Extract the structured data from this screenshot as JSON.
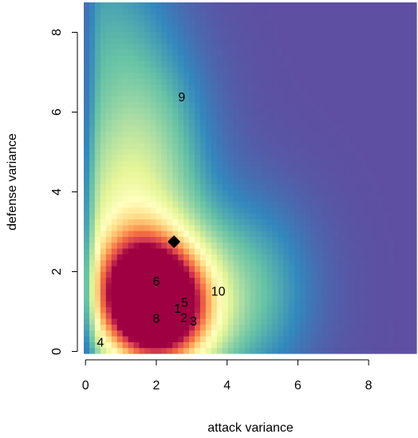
{
  "chart_data": {
    "type": "heatmap",
    "title": "",
    "xlabel": "attack variance",
    "ylabel": "defense variance",
    "xlim": [
      -0.05,
      9.35
    ],
    "ylim": [
      -0.05,
      8.75
    ],
    "x_ticks": [
      0,
      2,
      4,
      6,
      8
    ],
    "y_ticks": [
      0,
      2,
      4,
      6,
      8
    ],
    "grid": false,
    "legend": "none",
    "color_scale": [
      "#5e4fa2",
      "#3288bd",
      "#66c2a5",
      "#abdda4",
      "#e6f598",
      "#ffffbf",
      "#fee08b",
      "#fdae61",
      "#f46d43",
      "#d53e4f",
      "#9e0142"
    ],
    "density_peaks": [
      {
        "x": 1.6,
        "y": 1.4,
        "level": 1.0
      },
      {
        "x": 2.3,
        "y": 1.0,
        "level": 0.75
      },
      {
        "x": 1.2,
        "y": 3.3,
        "level": 0.35
      },
      {
        "x": 1.5,
        "y": 5.8,
        "level": 0.18
      },
      {
        "x": 4.5,
        "y": 1.5,
        "level": 0.2
      },
      {
        "x": 0.5,
        "y": 8.5,
        "level": 0.12
      }
    ],
    "marker": {
      "shape": "diamond",
      "x": 2.5,
      "y": 2.75,
      "color": "#000000"
    },
    "points": [
      {
        "label": "1",
        "x": 2.6,
        "y": 1.05
      },
      {
        "label": "2",
        "x": 2.78,
        "y": 0.82
      },
      {
        "label": "3",
        "x": 3.05,
        "y": 0.73
      },
      {
        "label": "4",
        "x": 0.42,
        "y": 0.2
      },
      {
        "label": "5",
        "x": 2.8,
        "y": 1.2
      },
      {
        "label": "6",
        "x": 2.0,
        "y": 1.73
      },
      {
        "label": "8",
        "x": 2.0,
        "y": 0.8
      },
      {
        "label": "9",
        "x": 2.72,
        "y": 6.35
      },
      {
        "label": "10",
        "x": 3.75,
        "y": 1.48
      }
    ]
  }
}
